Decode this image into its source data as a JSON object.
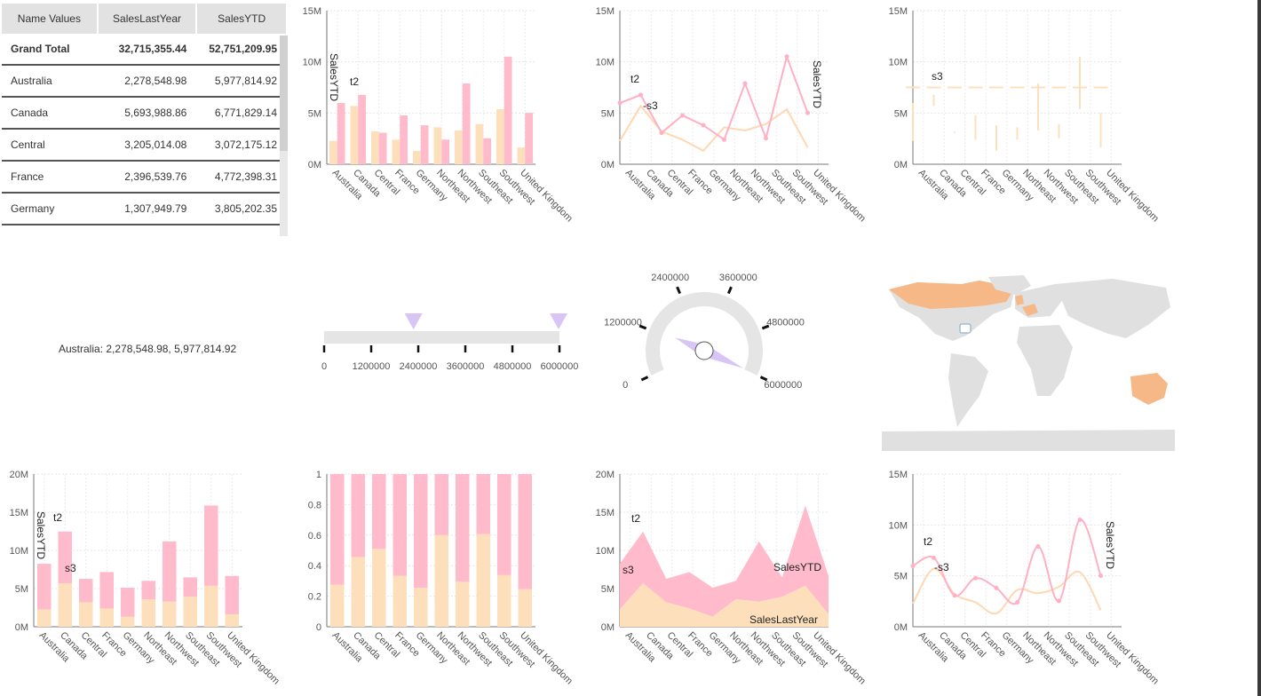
{
  "colors": {
    "last_year": "#fde0bb",
    "ytd": "#ffbacb",
    "ytd_line": "#ffb0c4",
    "last_line": "#ffd7b0",
    "map_land": "#e0e0e0",
    "map_hi": "#f5b886",
    "gauge_pointer": "#d8c4f5"
  },
  "categories": [
    "Australia",
    "Canada",
    "Central",
    "France",
    "Germany",
    "Northeast",
    "Northwest",
    "Southeast",
    "Southwest",
    "United Kingdom"
  ],
  "table": {
    "headers": [
      "Name Values",
      "SalesLastYear",
      "SalesYTD"
    ],
    "rows": [
      {
        "name": "Grand Total",
        "last": "32,715,355.44",
        "ytd": "52,751,209.95"
      },
      {
        "name": "Australia",
        "last": "2,278,548.98",
        "ytd": "5,977,814.92"
      },
      {
        "name": "Canada",
        "last": "5,693,988.86",
        "ytd": "6,771,829.14"
      },
      {
        "name": "Central",
        "last": "3,205,014.08",
        "ytd": "3,072,175.12"
      },
      {
        "name": "France",
        "last": "2,396,539.76",
        "ytd": "4,772,398.31"
      },
      {
        "name": "Germany",
        "last": "1,307,949.79",
        "ytd": "3,805,202.35"
      }
    ]
  },
  "summary_text": "Australia: 2,278,548.98, 5,977,814.92",
  "annotations": {
    "t2": "t2",
    "s3": "s3",
    "sales_ytd": "SalesYTD",
    "sales_last": "SalesLastYear"
  },
  "linear_gauge": {
    "ticks": [
      "0",
      "1200000",
      "2400000",
      "3600000",
      "4800000",
      "6000000"
    ],
    "markers": [
      2278548.98,
      5977814.92
    ],
    "max": 6000000
  },
  "radial_gauge": {
    "ticks": [
      "0",
      "1200000",
      "2400000",
      "3600000",
      "4800000",
      "6000000"
    ],
    "value": 5977814.92,
    "max": 6000000
  },
  "chart_data": [
    {
      "type": "bar",
      "title": "",
      "series": [
        {
          "name": "SalesLastYear",
          "values": [
            2278548.98,
            5693988.86,
            3205014.08,
            2396539.76,
            1307949.79,
            3607148.94,
            3298694.49,
            3925071.43,
            5366575.71,
            1635823.4
          ]
        },
        {
          "name": "SalesYTD",
          "values": [
            5977814.92,
            6771829.14,
            3072175.12,
            4772398.31,
            3805202.35,
            2402176.85,
            7887186.79,
            2538667.25,
            10510853.87,
            5012905.37
          ]
        }
      ],
      "ylim": [
        0,
        15000000
      ],
      "yticks": [
        "0M",
        "5M",
        "10M",
        "15M"
      ]
    },
    {
      "type": "line",
      "series": [
        {
          "name": "SalesLastYear",
          "values": [
            2278548.98,
            5693988.86,
            3205014.08,
            2396539.76,
            1307949.79,
            3607148.94,
            3298694.49,
            3925071.43,
            5366575.71,
            1635823.4
          ]
        },
        {
          "name": "SalesYTD",
          "values": [
            5977814.92,
            6771829.14,
            3072175.12,
            4772398.31,
            3805202.35,
            2402176.85,
            7887186.79,
            2538667.25,
            10510853.87,
            5012905.37
          ]
        }
      ],
      "ylim": [
        0,
        15000000
      ],
      "yticks": [
        "0M",
        "5M",
        "10M",
        "15M"
      ]
    },
    {
      "type": "range",
      "series": [
        {
          "name": "SalesLastYear",
          "values": [
            2278548.98,
            5693988.86,
            3205014.08,
            2396539.76,
            1307949.79,
            3607148.94,
            3298694.49,
            3925071.43,
            5366575.71,
            1635823.4
          ]
        },
        {
          "name": "SalesYTD",
          "values": [
            5977814.92,
            6771829.14,
            3072175.12,
            4772398.31,
            3805202.35,
            2402176.85,
            7887186.79,
            2538667.25,
            10510853.87,
            5012905.37
          ]
        }
      ],
      "ylim": [
        0,
        15000000
      ],
      "yticks": [
        "0M",
        "5M",
        "10M",
        "15M"
      ]
    },
    {
      "type": "bar",
      "stacked": true,
      "ylim": [
        0,
        20000000
      ],
      "yticks": [
        "0M",
        "5M",
        "10M",
        "15M",
        "20M"
      ]
    },
    {
      "type": "bar",
      "stacked": true,
      "percent": true,
      "ylim": [
        0,
        1
      ],
      "yticks": [
        "0",
        "0.2",
        "0.4",
        "0.6",
        "0.8",
        "1"
      ]
    },
    {
      "type": "area",
      "stacked": true,
      "ylim": [
        0,
        20000000
      ],
      "yticks": [
        "0M",
        "5M",
        "10M",
        "15M",
        "20M"
      ]
    },
    {
      "type": "line",
      "smooth": true,
      "ylim": [
        0,
        15000000
      ],
      "yticks": [
        "0M",
        "5M",
        "10M",
        "15M"
      ]
    }
  ]
}
